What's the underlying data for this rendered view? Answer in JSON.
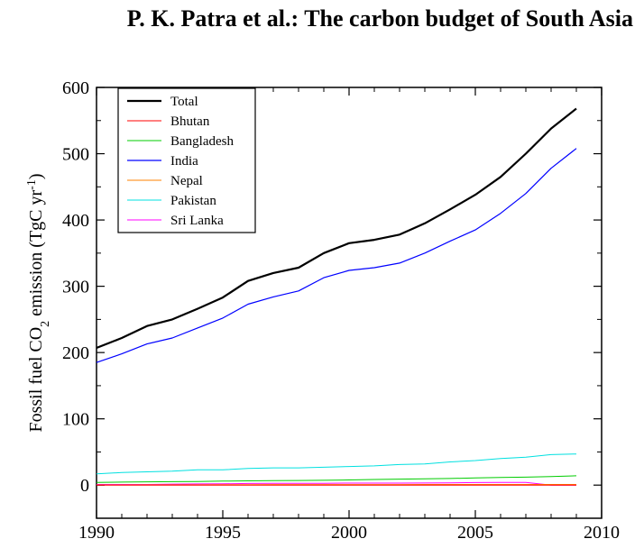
{
  "header": {
    "text": "P. K. Patra et al.: The carbon budget of South Asia"
  },
  "chart_data": {
    "type": "line",
    "title": "",
    "xlabel": "",
    "ylabel": "Fossil fuel CO2 emission (TgC yr-1)",
    "ylabel_parts": {
      "pre": "Fossil fuel CO",
      "sub": "2",
      "mid": " emission (TgC yr",
      "sup": "-1",
      "post": ")"
    },
    "xlim": [
      1990,
      2010
    ],
    "ylim": [
      -50,
      600
    ],
    "xticks": [
      1990,
      1995,
      2000,
      2005,
      2010
    ],
    "yticks": [
      0,
      100,
      200,
      300,
      400,
      500,
      600
    ],
    "grid": false,
    "legend_position": "top-left",
    "x": [
      1990,
      1991,
      1992,
      1993,
      1994,
      1995,
      1996,
      1997,
      1998,
      1999,
      2000,
      2001,
      2002,
      2003,
      2004,
      2005,
      2006,
      2007,
      2008,
      2009
    ],
    "series": [
      {
        "name": "Total",
        "color": "#000000",
        "width": 2.2,
        "values": [
          207,
          222,
          240,
          250,
          266,
          283,
          308,
          320,
          328,
          350,
          365,
          370,
          378,
          395,
          416,
          438,
          465,
          500,
          538,
          568
        ]
      },
      {
        "name": "Bhutan",
        "color": "#ff0000",
        "width": 1,
        "values": [
          0.1,
          0.1,
          0.1,
          0.1,
          0.1,
          0.1,
          0.1,
          0.1,
          0.1,
          0.1,
          0.1,
          0.1,
          0.1,
          0.1,
          0.1,
          0.1,
          0.1,
          0.1,
          0.1,
          0.1
        ]
      },
      {
        "name": "Bangladesh",
        "color": "#00cc00",
        "width": 1,
        "values": [
          4,
          4.5,
          5,
          5.2,
          5.5,
          6,
          6.5,
          6.8,
          7,
          7.2,
          7.8,
          8.5,
          9,
          9.5,
          10,
          10.8,
          11.5,
          12,
          13,
          14
        ]
      },
      {
        "name": "India",
        "color": "#0000ff",
        "width": 1.2,
        "values": [
          185,
          198,
          213,
          222,
          237,
          252,
          273,
          284,
          293,
          313,
          324,
          328,
          335,
          350,
          368,
          385,
          410,
          440,
          478,
          508
        ]
      },
      {
        "name": "Nepal",
        "color": "#ff8000",
        "width": 1,
        "values": [
          0.3,
          0.3,
          0.4,
          0.4,
          0.5,
          0.6,
          0.7,
          0.8,
          0.9,
          0.9,
          0.9,
          0.9,
          0.9,
          1,
          1,
          1,
          1,
          1,
          1,
          1
        ]
      },
      {
        "name": "Pakistan",
        "color": "#00e0e0",
        "width": 1,
        "values": [
          17,
          19,
          20,
          21,
          23,
          23,
          25,
          26,
          26,
          27,
          28,
          29,
          31,
          32,
          35,
          37,
          40,
          42,
          46,
          47
        ]
      },
      {
        "name": "Sri Lanka",
        "color": "#ff00ff",
        "width": 1,
        "values": [
          1,
          1,
          1,
          1.5,
          1.8,
          2,
          2.5,
          2.8,
          2.8,
          2.8,
          3,
          3,
          3,
          3.2,
          3.5,
          3.8,
          4,
          4,
          0,
          0
        ]
      }
    ]
  }
}
